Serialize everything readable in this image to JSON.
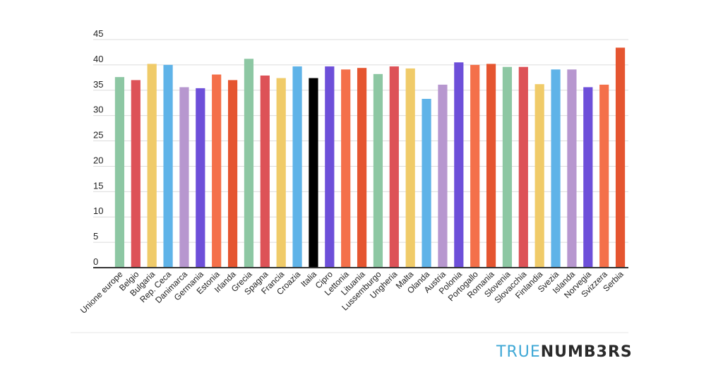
{
  "chart_data": {
    "type": "bar",
    "categories": [
      "Unione europe",
      "Belgio",
      "Bulgaria",
      "Rep. Ceca",
      "Danimarca",
      "Germania",
      "Estonia",
      "Irlanda",
      "Grecia",
      "Spagna",
      "Francia",
      "Croazia",
      "Italia",
      "Cipro",
      "Lettonia",
      "Lituania",
      "Lussemburgo",
      "Ungheria",
      "Malta",
      "Olanda",
      "Austria",
      "Polonia",
      "Portogallo",
      "Romania",
      "Slovenia",
      "Slovacchia",
      "Finlandia",
      "Svezia",
      "Islanda",
      "Norvegia",
      "Svizzera",
      "Serbia"
    ],
    "values": [
      37.6,
      37.0,
      40.2,
      40.0,
      35.6,
      35.4,
      38.1,
      37.0,
      41.2,
      37.9,
      37.4,
      39.7,
      37.4,
      39.7,
      39.1,
      39.4,
      38.2,
      39.7,
      39.3,
      33.3,
      36.1,
      40.5,
      40.0,
      40.2,
      39.6,
      39.6,
      36.2,
      39.1,
      39.1,
      35.6,
      36.1,
      43.4
    ],
    "colors": [
      "#8dc7a3",
      "#dd5257",
      "#f0cb69",
      "#5fb3e8",
      "#b797cf",
      "#6d4fd9",
      "#f4704a",
      "#e55530",
      "#8dc7a3",
      "#dd5257",
      "#f0cb69",
      "#5fb3e8",
      "#000000",
      "#6d4fd9",
      "#f4704a",
      "#e55530",
      "#8dc7a3",
      "#dd5257",
      "#f0cb69",
      "#5fb3e8",
      "#b797cf",
      "#6d4fd9",
      "#f4704a",
      "#e55530",
      "#8dc7a3",
      "#dd5257",
      "#f0cb69",
      "#5fb3e8",
      "#b797cf",
      "#6d4fd9",
      "#f4704a",
      "#e55530"
    ],
    "yticks": [
      0,
      5,
      10,
      15,
      20,
      25,
      30,
      35,
      40,
      45
    ],
    "ylim": [
      0,
      45
    ],
    "grid": true,
    "legend": "none"
  },
  "brand": {
    "part1": "TRUE",
    "part2": "NUMB3RS"
  }
}
